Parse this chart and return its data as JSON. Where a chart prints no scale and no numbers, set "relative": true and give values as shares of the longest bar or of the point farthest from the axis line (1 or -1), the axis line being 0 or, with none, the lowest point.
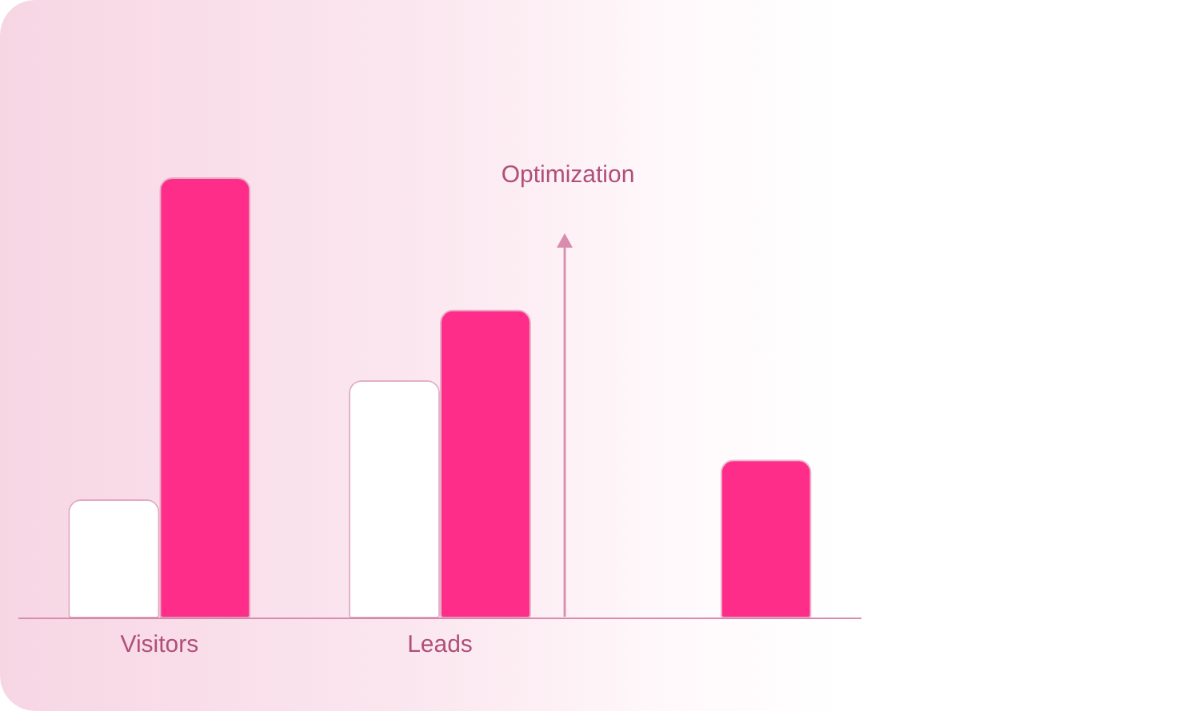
{
  "chart_data": {
    "type": "bar",
    "relative": true,
    "categories": [
      "Visitors",
      "Leads",
      null
    ],
    "series": [
      {
        "color": "#ffffff",
        "values": [
          0.27,
          0.54,
          null
        ]
      },
      {
        "color": "#ff2d8a",
        "values": [
          1,
          0.7,
          0.36
        ]
      }
    ],
    "annotations": [
      "Optimization"
    ],
    "grid": false,
    "legend": false
  }
}
